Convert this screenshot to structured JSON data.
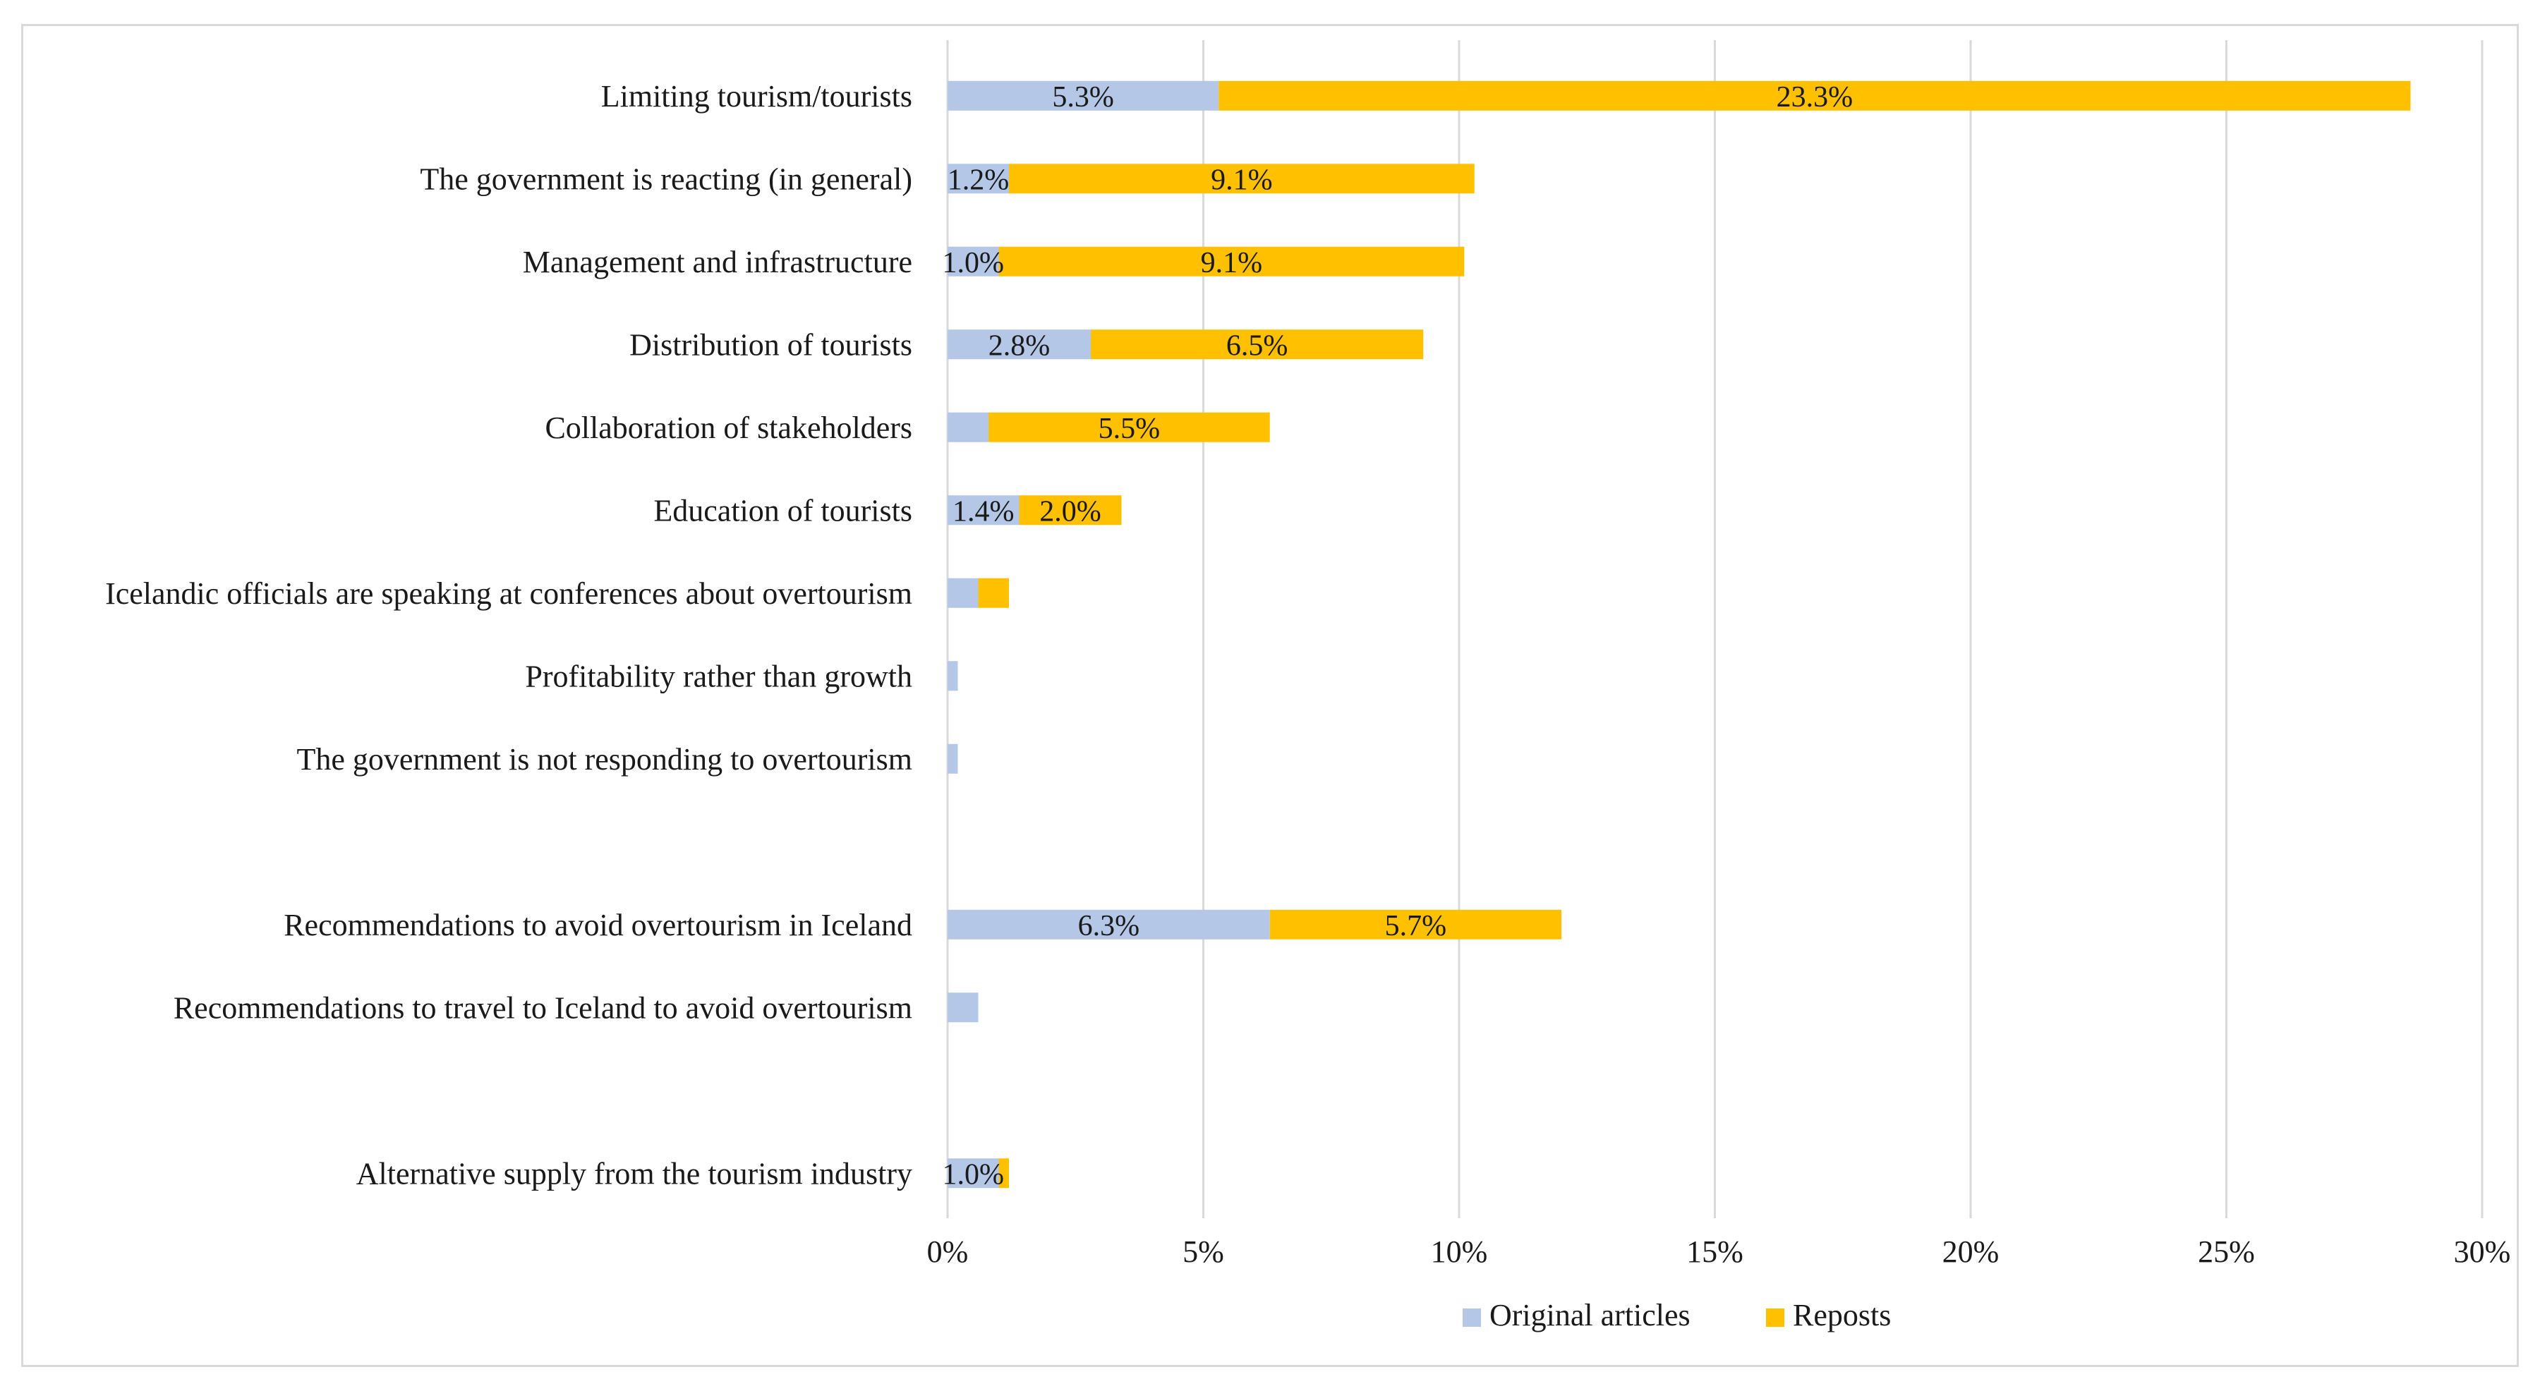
{
  "chart_data": {
    "type": "bar",
    "orientation": "horizontal",
    "stacked": true,
    "title": "",
    "xlabel": "",
    "ylabel": "",
    "xlim": [
      0,
      30
    ],
    "x_ticks": [
      0,
      5,
      10,
      15,
      20,
      25,
      30
    ],
    "tick_format": "percent",
    "grid": "vertical",
    "legend_position": "bottom",
    "categories": [
      "Limiting tourism/tourists",
      "The government is reacting (in general)",
      "Management and infrastructure",
      "Distribution of tourists",
      "Collaboration of stakeholders",
      "Education of tourists",
      "Icelandic officials are speaking at conferences about overtourism",
      "Profitability rather than growth",
      "The government is not responding to overtourism",
      "",
      "Recommendations to avoid overtourism in Iceland",
      "Recommendations to travel to Iceland to avoid overtourism",
      "",
      "Alternative supply from the tourism industry"
    ],
    "series": [
      {
        "name": "Original articles",
        "color": "#b4c7e7",
        "values": [
          5.3,
          1.2,
          1.0,
          2.8,
          0.8,
          1.4,
          0.6,
          0.2,
          0.2,
          null,
          6.3,
          0.6,
          null,
          1.0
        ],
        "labels": [
          "5.3%",
          "1.2%",
          "1.0%",
          "2.8%",
          "",
          "1.4%",
          "",
          "",
          "",
          "",
          "6.3%",
          "",
          "",
          "1.0%"
        ]
      },
      {
        "name": "Reposts",
        "color": "#ffc000",
        "values": [
          23.3,
          9.1,
          9.1,
          6.5,
          5.5,
          2.0,
          0.6,
          0,
          0,
          null,
          5.7,
          0,
          null,
          0.2
        ],
        "labels": [
          "23.3%",
          "9.1%",
          "9.1%",
          "6.5%",
          "5.5%",
          "2.0%",
          "",
          "",
          "",
          "",
          "5.7%",
          "",
          "",
          ""
        ]
      }
    ]
  }
}
